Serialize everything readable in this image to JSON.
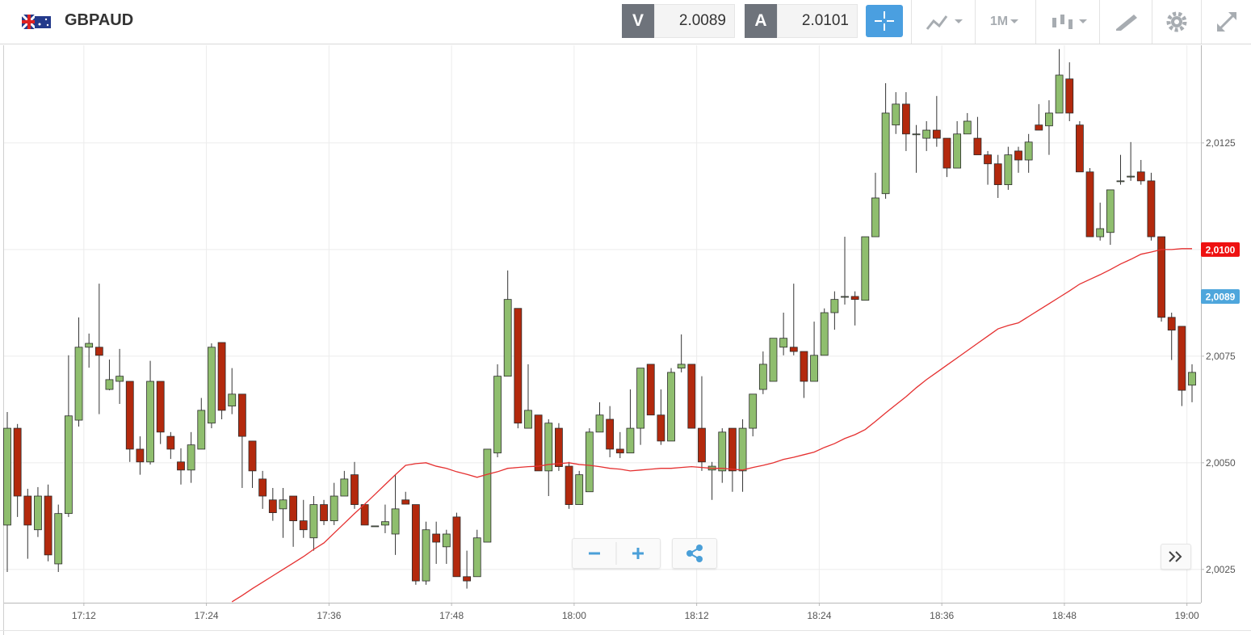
{
  "header": {
    "symbol": "GBPAUD",
    "sell": {
      "label": "V",
      "price": "2.0089"
    },
    "buy": {
      "label": "A",
      "price": "2.0101"
    },
    "timeframe": "1M"
  },
  "chart_data": {
    "type": "candlestick",
    "categories": [
      null,
      null,
      null,
      null,
      null,
      null,
      null,
      null,
      "17:12",
      null,
      null,
      null,
      null,
      null,
      null,
      null,
      null,
      null,
      null,
      null,
      "17:24",
      null,
      null,
      null,
      null,
      null,
      null,
      null,
      null,
      null,
      null,
      null,
      "17:36",
      null,
      null,
      null,
      null,
      null,
      null,
      null,
      null,
      null,
      null,
      null,
      "17:48",
      null,
      null,
      null,
      null,
      null,
      null,
      null,
      null,
      null,
      null,
      null,
      "18:00",
      null,
      null,
      null,
      null,
      null,
      null,
      null,
      null,
      null,
      null,
      null,
      "18:12",
      null,
      null,
      null,
      null,
      null,
      null,
      null,
      null,
      null,
      null,
      null,
      "18:24",
      null,
      null,
      null,
      null,
      null,
      null,
      null,
      null,
      null,
      null,
      null,
      "18:36",
      null,
      null,
      null,
      null,
      null,
      null,
      null,
      null,
      null,
      null,
      null,
      "18:48",
      null,
      null,
      null,
      null,
      null,
      null,
      null,
      null,
      null,
      null,
      null,
      "19:00"
    ],
    "open": [
      2.00354,
      2.00581,
      2.00422,
      2.00343,
      2.00422,
      2.00263,
      2.00381,
      2.006,
      2.00771,
      2.00771,
      2.00672,
      2.00691,
      2.00691,
      2.00532,
      2.00502,
      2.00691,
      2.00562,
      2.00502,
      2.00483,
      2.00532,
      2.00593,
      2.00782,
      2.00633,
      2.00661,
      2.00551,
      2.00462,
      2.00413,
      2.00392,
      2.00422,
      2.00364,
      2.00324,
      2.00402,
      2.00364,
      2.00422,
      2.00472,
      2.00402,
      2.00352,
      2.00354,
      2.00333,
      2.00413,
      2.00402,
      2.00223,
      2.00333,
      2.00303,
      2.00373,
      2.00233,
      2.00233,
      2.00314,
      2.00523,
      2.00703,
      2.00862,
      2.00581,
      2.00612,
      2.00481,
      2.00581,
      2.00492,
      2.00402,
      2.00432,
      2.00572,
      2.00602,
      2.00532,
      2.00523,
      2.00581,
      2.00731,
      2.00612,
      2.00551,
      2.00722,
      2.00731,
      2.00581,
      2.00483,
      2.00481,
      2.00581,
      2.00481,
      2.00581,
      2.00672,
      2.00691,
      2.00771,
      2.00771,
      2.00761,
      2.00691,
      2.00752,
      2.00852,
      2.0089,
      2.0089,
      2.00881,
      2.0103,
      2.01131,
      2.01292,
      2.01341,
      2.01271,
      2.01261,
      2.0128,
      2.01261,
      2.01191,
      2.01271,
      2.01261,
      2.01222,
      2.01201,
      2.01152,
      2.01231,
      2.0121,
      2.01292,
      2.0129,
      2.0132,
      2.014,
      2.01292,
      2.01182,
      2.0103,
      2.0104,
      2.01161,
      2.0117,
      2.01182,
      2.01161,
      2.0103,
      2.00841,
      2.0082,
      2.00682
    ],
    "high": [
      2.00619,
      2.00591,
      2.00439,
      2.00443,
      2.00449,
      2.00402,
      2.00752,
      2.00841,
      2.00803,
      2.0092,
      2.00742,
      2.00767,
      2.00691,
      2.00562,
      2.00739,
      2.00691,
      2.00572,
      2.00534,
      2.00572,
      2.00652,
      2.0078,
      2.00782,
      2.00722,
      2.00661,
      2.00551,
      2.00481,
      2.00441,
      2.00441,
      2.00422,
      2.00413,
      2.00422,
      2.00413,
      2.00453,
      2.00481,
      2.00502,
      2.00402,
      2.00352,
      2.00402,
      2.00472,
      2.00432,
      2.00402,
      2.00362,
      2.00362,
      2.00343,
      2.00383,
      2.00294,
      2.00343,
      2.00532,
      2.00731,
      2.00951,
      2.00862,
      2.00731,
      2.00612,
      2.00602,
      2.00593,
      2.00502,
      2.00481,
      2.00581,
      2.00642,
      2.00633,
      2.00572,
      2.00672,
      2.00722,
      2.00731,
      2.00672,
      2.00722,
      2.00801,
      2.00731,
      2.00703,
      2.00502,
      2.00581,
      2.00581,
      2.00602,
      2.00661,
      2.00761,
      2.00792,
      2.00852,
      2.0092,
      2.00761,
      2.00831,
      2.00862,
      2.00902,
      2.0103,
      2.00902,
      2.0103,
      2.0118,
      2.0139,
      2.01369,
      2.01369,
      2.01292,
      2.01301,
      2.0136,
      2.01261,
      2.01301,
      2.0132,
      2.01311,
      2.01231,
      2.01222,
      2.01241,
      2.01241,
      2.01271,
      2.01341,
      2.0135,
      2.0147,
      2.01439,
      2.01301,
      2.01191,
      2.0111,
      2.0114,
      2.01222,
      2.01252,
      2.0121,
      2.0118,
      2.0103,
      2.00852,
      2.0082,
      2.00731
    ],
    "low": [
      2.00244,
      2.00373,
      2.00275,
      2.00326,
      2.00269,
      2.00244,
      2.00373,
      2.00585,
      2.00723,
      2.00614,
      2.0067,
      2.00638,
      2.00502,
      2.00472,
      2.00496,
      2.00544,
      2.00509,
      2.00449,
      2.00453,
      2.00532,
      2.00581,
      2.00602,
      2.00614,
      2.00441,
      2.00441,
      2.00392,
      2.00364,
      2.00324,
      2.00303,
      2.00324,
      2.00294,
      2.00354,
      2.00354,
      2.00422,
      2.00392,
      2.00354,
      2.00352,
      2.00335,
      2.00284,
      2.00403,
      2.00214,
      2.00214,
      2.00263,
      2.00263,
      2.00233,
      2.00205,
      2.00233,
      2.00314,
      2.00513,
      2.00703,
      2.00581,
      2.00581,
      2.00481,
      2.00422,
      2.00481,
      2.00392,
      2.00402,
      2.00432,
      2.00572,
      2.00513,
      2.00511,
      2.00523,
      2.00542,
      2.00612,
      2.00542,
      2.00551,
      2.00712,
      2.00581,
      2.00481,
      2.00413,
      2.00453,
      2.00432,
      2.00432,
      2.00562,
      2.00661,
      2.00691,
      2.00752,
      2.00752,
      2.00652,
      2.00691,
      2.00752,
      2.00812,
      2.00871,
      2.00822,
      2.00881,
      2.0103,
      2.01119,
      2.01271,
      2.01231,
      2.0118,
      2.01231,
      2.01241,
      2.0117,
      2.01191,
      2.01271,
      2.01222,
      2.01152,
      2.01121,
      2.0114,
      2.0118,
      2.0118,
      2.0128,
      2.01222,
      2.0132,
      2.01301,
      2.01182,
      2.0103,
      2.01021,
      2.01011,
      2.01152,
      2.01161,
      2.01152,
      2.01021,
      2.00831,
      2.00741,
      2.00633,
      2.00642
    ],
    "close": [
      2.00581,
      2.00422,
      2.00354,
      2.00422,
      2.00284,
      2.00381,
      2.0061,
      2.00771,
      2.0078,
      2.00752,
      2.00695,
      2.00703,
      2.00532,
      2.00502,
      2.00691,
      2.00572,
      2.00532,
      2.00483,
      2.00542,
      2.00623,
      2.00771,
      2.00623,
      2.00661,
      2.00562,
      2.00481,
      2.00422,
      2.00383,
      2.00413,
      2.00364,
      2.00343,
      2.00402,
      2.00364,
      2.00422,
      2.00462,
      2.00402,
      2.00354,
      2.00352,
      2.00362,
      2.00392,
      2.00403,
      2.00223,
      2.00343,
      2.00314,
      2.00333,
      2.00233,
      2.00223,
      2.00324,
      2.00532,
      2.00703,
      2.00883,
      2.00593,
      2.00623,
      2.00481,
      2.00593,
      2.00491,
      2.00402,
      2.00472,
      2.00572,
      2.00612,
      2.00532,
      2.00523,
      2.00581,
      2.00722,
      2.00612,
      2.00551,
      2.00712,
      2.00731,
      2.00581,
      2.00502,
      2.00492,
      2.00572,
      2.00481,
      2.00581,
      2.00661,
      2.00731,
      2.00792,
      2.00792,
      2.00761,
      2.00691,
      2.00752,
      2.00852,
      2.00883,
      2.0089,
      2.00883,
      2.0103,
      2.01121,
      2.0132,
      2.01341,
      2.01271,
      2.01271,
      2.0128,
      2.01261,
      2.01191,
      2.01271,
      2.01301,
      2.01222,
      2.01201,
      2.01152,
      2.01222,
      2.0121,
      2.01252,
      2.0128,
      2.0132,
      2.01409,
      2.0132,
      2.01182,
      2.0103,
      2.01049,
      2.0114,
      2.01161,
      2.01172,
      2.01161,
      2.0103,
      2.00841,
      2.00811,
      2.0067,
      2.00712
    ],
    "up_color": "#8fbe6e",
    "down_color": "#b3290d",
    "ma": {
      "color": "#e53030",
      "values": [
        null,
        null,
        null,
        null,
        null,
        null,
        null,
        null,
        null,
        null,
        null,
        null,
        null,
        null,
        null,
        null,
        null,
        null,
        null,
        null,
        null,
        null,
        2.00174,
        2.00189,
        2.00205,
        2.0022,
        2.00235,
        2.0025,
        2.00265,
        2.0028,
        2.00297,
        2.00312,
        2.00335,
        2.00358,
        2.00381,
        2.00403,
        2.00426,
        2.00449,
        2.00472,
        2.00494,
        2.00498,
        2.005,
        2.00492,
        2.00487,
        2.00479,
        2.00473,
        2.00466,
        2.00473,
        2.00479,
        2.00487,
        2.00489,
        2.00491,
        2.00492,
        2.00496,
        2.00498,
        2.005,
        2.00496,
        2.00494,
        2.00491,
        2.00487,
        2.00485,
        2.00481,
        2.00483,
        2.00485,
        2.00487,
        2.00487,
        2.00489,
        2.00491,
        2.00489,
        2.00487,
        2.00487,
        2.00485,
        2.00483,
        2.00489,
        2.00494,
        2.005,
        2.00508,
        2.00513,
        2.00519,
        2.00525,
        2.00536,
        2.00545,
        2.00557,
        2.00566,
        2.00578,
        2.00597,
        2.00617,
        2.00636,
        2.00655,
        2.00676,
        2.00695,
        2.00712,
        2.00729,
        2.00746,
        2.00763,
        2.0078,
        2.00797,
        2.00814,
        2.00822,
        2.00828,
        2.00843,
        2.00858,
        2.00873,
        2.00888,
        2.00903,
        2.00919,
        2.0093,
        2.00941,
        2.00953,
        2.00966,
        2.00977,
        2.00989,
        2.00994,
        2.01,
        2.01,
        2.01002,
        2.01002
      ]
    },
    "ylim": [
      2.00172,
      2.01479
    ],
    "yticks": [
      {
        "value": 2.0025,
        "label": "2,0025"
      },
      {
        "value": 2.005,
        "label": "2,0050"
      },
      {
        "value": 2.0075,
        "label": "2,0075"
      },
      {
        "value": 2.01,
        "label": "2,0100"
      },
      {
        "value": 2.0125,
        "label": "2,0125"
      }
    ],
    "grid": true,
    "price_tags": [
      {
        "value": 2.01,
        "label": "2,0100",
        "color": "#ee1111"
      },
      {
        "value": 2.0089,
        "label": "2,0089",
        "color": "#4ea6dc"
      }
    ]
  }
}
